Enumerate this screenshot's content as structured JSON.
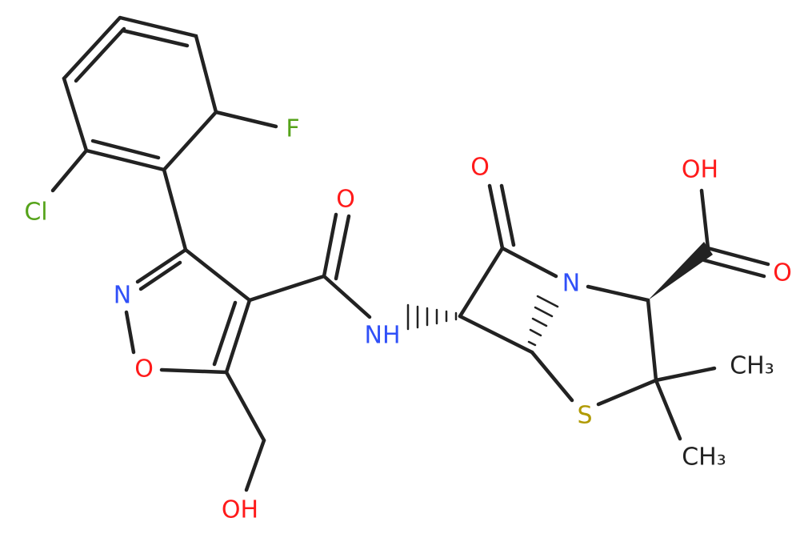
{
  "atoms": [
    "Cl",
    "F",
    "N",
    "O",
    "OH",
    "O",
    "NH",
    "O",
    "N",
    "S",
    "OH",
    "O",
    "CH₃",
    "CH₃"
  ]
}
